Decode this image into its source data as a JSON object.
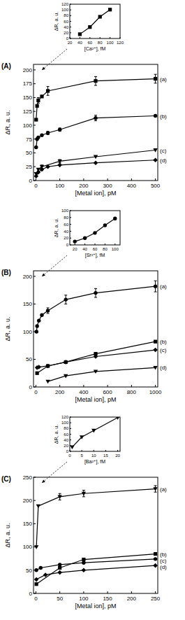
{
  "chart_data": [
    {
      "type": "line",
      "title": "(A)",
      "x_label": "[Metal ion], pM",
      "y_label": "ΔR, a. u.",
      "xlim": [
        -10,
        510
      ],
      "xticks": [
        0,
        100,
        200,
        300,
        400,
        500
      ],
      "ylim": [
        0,
        210
      ],
      "yticks": [
        0,
        25,
        50,
        75,
        100,
        125,
        150,
        175,
        200
      ],
      "series": [
        {
          "name": "(a)",
          "color": "#000000",
          "marker": "square",
          "line_style": "solid",
          "x": [
            1,
            5,
            10,
            25,
            50,
            250,
            500
          ],
          "values": [
            110,
            135,
            145,
            152,
            162,
            180,
            184
          ],
          "errors": [
            null,
            null,
            5,
            null,
            8,
            8,
            8
          ]
        },
        {
          "name": "(b)",
          "color": "#000000",
          "marker": "circle",
          "line_style": "solid",
          "x": [
            1,
            5,
            10,
            25,
            50,
            100,
            250,
            500
          ],
          "values": [
            60,
            75,
            78,
            82,
            86,
            92,
            113,
            117
          ],
          "errors": [
            null,
            null,
            null,
            null,
            3,
            3,
            5,
            null
          ]
        },
        {
          "name": "(c)",
          "color": "#000000",
          "marker": "triangle-down",
          "line_style": "solid",
          "x": [
            1,
            10,
            25,
            100,
            250,
            500
          ],
          "values": [
            12,
            20,
            25,
            35,
            43,
            55
          ],
          "errors": [
            null,
            null,
            3,
            3,
            null,
            null
          ]
        },
        {
          "name": "(d)",
          "color": "#000000",
          "marker": "diamond",
          "line_style": "solid",
          "x": [
            1,
            10,
            25,
            50,
            100,
            250,
            500
          ],
          "values": [
            8,
            15,
            20,
            25,
            28,
            32,
            37
          ],
          "errors": [
            null,
            null,
            null,
            null,
            null,
            null,
            null
          ]
        }
      ]
    },
    {
      "type": "line",
      "x_label": "[Ca²⁺], fM",
      "y_label": "ΔR, a. u.",
      "xlim": [
        20,
        120
      ],
      "xticks": [
        20,
        40,
        60,
        80,
        100,
        120
      ],
      "ylim": [
        0,
        120
      ],
      "yticks": [
        0,
        20,
        40,
        60,
        80,
        100,
        120
      ],
      "series": [
        {
          "color": "#000000",
          "marker": "square",
          "line_style": "solid",
          "x": [
            40,
            60,
            80,
            100
          ],
          "values": [
            15,
            40,
            76,
            101
          ],
          "errors": [
            null,
            null,
            2,
            3
          ]
        }
      ]
    },
    {
      "type": "line",
      "title": "(B)",
      "x_label": "[Metal ion], pM",
      "y_label": "ΔR, a. u.",
      "xlim": [
        -20,
        1020
      ],
      "xticks": [
        0,
        200,
        400,
        600,
        800,
        1000
      ],
      "ylim": [
        0,
        210
      ],
      "yticks": [
        0,
        50,
        100,
        150,
        200
      ],
      "series": [
        {
          "name": "(a)",
          "color": "#000000",
          "marker": "circle",
          "line_style": "solid",
          "x": [
            5,
            10,
            25,
            50,
            100,
            250,
            500,
            1000
          ],
          "values": [
            100,
            110,
            120,
            130,
            138,
            158,
            170,
            182
          ],
          "errors": [
            null,
            null,
            null,
            null,
            5,
            8,
            8,
            10
          ]
        },
        {
          "name": "(b)",
          "color": "#000000",
          "marker": "square",
          "line_style": "solid",
          "x": [
            10,
            100,
            250,
            500,
            1000
          ],
          "values": [
            25,
            38,
            45,
            60,
            82
          ],
          "errors": [
            null,
            null,
            null,
            null,
            null
          ]
        },
        {
          "name": "(c)",
          "color": "#000000",
          "marker": "diamond",
          "line_style": "solid",
          "x": [
            10,
            25,
            100,
            250,
            500,
            1000
          ],
          "values": [
            35,
            36,
            38,
            45,
            55,
            67
          ],
          "errors": [
            null,
            null,
            null,
            null,
            null,
            null
          ]
        },
        {
          "name": "(d)",
          "color": "#000000",
          "marker": "triangle-down",
          "line_style": "solid",
          "x": [
            100,
            250,
            500,
            1000
          ],
          "values": [
            10,
            20,
            28,
            35
          ],
          "errors": [
            null,
            null,
            null,
            null
          ]
        }
      ]
    },
    {
      "type": "line",
      "x_label": "[Sr²⁺], fM",
      "y_label": "ΔR, a. u.",
      "xlim": [
        10,
        110
      ],
      "xticks": [
        20,
        40,
        60,
        80,
        100
      ],
      "ylim": [
        0,
        100
      ],
      "yticks": [
        0,
        20,
        40,
        60,
        80,
        100
      ],
      "series": [
        {
          "color": "#000000",
          "marker": "circle",
          "line_style": "solid",
          "x": [
            20,
            40,
            60,
            80,
            100
          ],
          "values": [
            10,
            20,
            35,
            57,
            77
          ],
          "errors": [
            null,
            null,
            null,
            2,
            3
          ]
        }
      ]
    },
    {
      "type": "line",
      "title": "(C)",
      "x_label": "[Metal ion], pM",
      "y_label": "ΔR, a. u.",
      "xlim": [
        -5,
        255
      ],
      "xticks": [
        0,
        50,
        100,
        150,
        200,
        250
      ],
      "ylim": [
        0,
        250
      ],
      "yticks": [
        0,
        50,
        100,
        150,
        200,
        250
      ],
      "series": [
        {
          "name": "(a)",
          "color": "#000000",
          "marker": "triangle-down",
          "line_style": "solid",
          "x": [
            1,
            5,
            50,
            100,
            250
          ],
          "values": [
            100,
            188,
            208,
            215,
            225
          ],
          "errors": [
            null,
            null,
            7,
            7,
            7
          ]
        },
        {
          "name": "(b)",
          "color": "#000000",
          "marker": "square",
          "line_style": "solid",
          "x": [
            1,
            50,
            100,
            250
          ],
          "values": [
            20,
            55,
            73,
            85
          ],
          "errors": [
            null,
            null,
            null,
            null
          ]
        },
        {
          "name": "(c)",
          "color": "#000000",
          "marker": "circle",
          "line_style": "solid",
          "x": [
            1,
            10,
            50,
            100,
            250
          ],
          "values": [
            50,
            55,
            62,
            66,
            74
          ],
          "errors": [
            null,
            null,
            null,
            null,
            null
          ]
        },
        {
          "name": "(d)",
          "color": "#000000",
          "marker": "diamond",
          "line_style": "solid",
          "x": [
            1,
            20,
            50,
            100,
            250
          ],
          "values": [
            30,
            40,
            45,
            50,
            60
          ],
          "errors": [
            null,
            null,
            null,
            null,
            null
          ]
        }
      ]
    },
    {
      "type": "line",
      "x_label": "[Ba²⁺], fM",
      "y_label": "ΔR, a. u.",
      "xlim": [
        0,
        21
      ],
      "xticks": [
        0,
        5,
        10,
        15,
        20
      ],
      "ylim": [
        0,
        120
      ],
      "yticks": [
        0,
        20,
        40,
        60,
        80,
        100,
        120
      ],
      "series": [
        {
          "color": "#000000",
          "marker": "triangle-down",
          "line_style": "solid",
          "x": [
            1,
            5,
            10,
            20
          ],
          "values": [
            15,
            50,
            73,
            118
          ],
          "errors": [
            null,
            null,
            null,
            null
          ]
        }
      ]
    }
  ]
}
